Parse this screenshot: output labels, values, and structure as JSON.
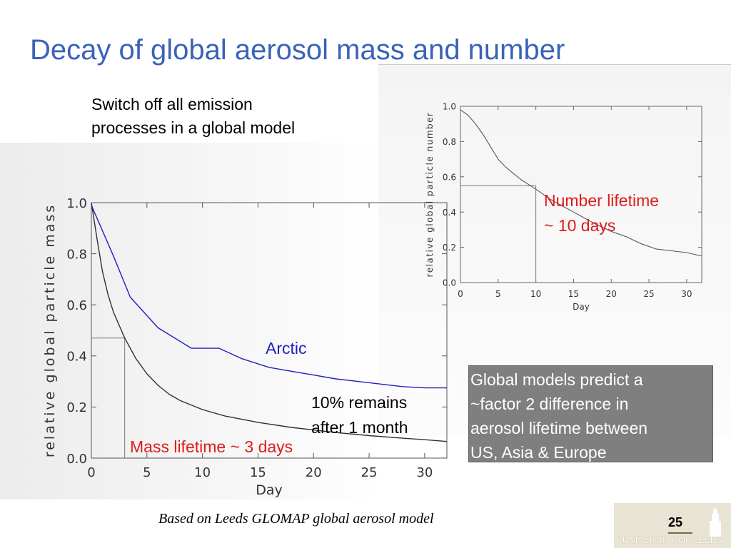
{
  "slide": {
    "title": "Decay of global aerosol mass and number",
    "intro_lines": [
      "Switch off all emission",
      "processes in a global model"
    ],
    "box_lines": [
      "Global models predict a",
      "~factor 2 difference in",
      "aerosol lifetime between",
      "US, Asia & Europe"
    ],
    "footer": "Based on Leeds GLOMAP global aerosol model",
    "page_number": "25",
    "university": "UNIVERSITY OF LEEDS",
    "colors": {
      "title": "#3a62b8",
      "arctic": "#1f1fbf",
      "annotation": "#e01b1b",
      "box": "#7f7f7f"
    }
  },
  "chart_data": [
    {
      "type": "line",
      "xlabel": "Day",
      "ylabel": "relative global particle mass",
      "xlim": [
        0,
        32
      ],
      "ylim": [
        0,
        1.0
      ],
      "xticks": [
        0,
        5,
        10,
        15,
        20,
        25,
        30
      ],
      "yticks": [
        0.0,
        0.2,
        0.4,
        0.6,
        0.8,
        1.0
      ],
      "ytick_labels": [
        "0.0",
        "0.2",
        "0.4",
        "0.6",
        "0.8",
        "1.0"
      ],
      "series": [
        {
          "name": "",
          "color": "#303030",
          "x": [
            0,
            0.5,
            1,
            1.5,
            2,
            3,
            4,
            5,
            6,
            7,
            8,
            10,
            12,
            15,
            18,
            20,
            22,
            25,
            28,
            30,
            32
          ],
          "y": [
            1.0,
            0.86,
            0.73,
            0.64,
            0.57,
            0.47,
            0.39,
            0.33,
            0.285,
            0.25,
            0.225,
            0.19,
            0.165,
            0.14,
            0.12,
            0.11,
            0.1,
            0.088,
            0.078,
            0.072,
            0.065
          ]
        },
        {
          "name": "Arctic",
          "color": "#1f1fbf",
          "x": [
            0,
            2,
            3.5,
            6,
            9,
            11.5,
            13.5,
            16,
            18,
            20,
            22,
            24,
            26,
            28,
            30,
            32
          ],
          "y": [
            0.99,
            0.79,
            0.63,
            0.51,
            0.43,
            0.43,
            0.39,
            0.355,
            0.34,
            0.325,
            0.31,
            0.3,
            0.29,
            0.28,
            0.275,
            0.275
          ]
        }
      ],
      "reference": {
        "x": 3,
        "y": 0.47
      },
      "annotations": [
        {
          "text": "Arctic",
          "color": "#1f1fbf"
        },
        {
          "text": "10% remains",
          "color": "#000000"
        },
        {
          "text": "after 1 month",
          "color": "#000000"
        },
        {
          "text": "Mass lifetime ~ 3 days",
          "color": "#e01b1b"
        }
      ]
    },
    {
      "type": "line",
      "xlabel": "Day",
      "ylabel": "relative global particle number",
      "xlim": [
        0,
        32
      ],
      "ylim": [
        0,
        1.0
      ],
      "xticks": [
        0,
        5,
        10,
        15,
        20,
        25,
        30
      ],
      "yticks": [
        0.0,
        0.2,
        0.4,
        0.6,
        0.8,
        1.0
      ],
      "ytick_labels": [
        "0.0",
        "0.2",
        "0.4",
        "0.6",
        "0.8",
        "1.0"
      ],
      "series": [
        {
          "name": "",
          "color": "#555555",
          "x": [
            0,
            1,
            2,
            3,
            4,
            5,
            6,
            7,
            8,
            10,
            12,
            15,
            18,
            20,
            22,
            24,
            26,
            28,
            30,
            32
          ],
          "y": [
            0.98,
            0.95,
            0.9,
            0.84,
            0.77,
            0.7,
            0.655,
            0.62,
            0.585,
            0.53,
            0.47,
            0.4,
            0.33,
            0.29,
            0.26,
            0.22,
            0.19,
            0.18,
            0.17,
            0.15
          ]
        }
      ],
      "reference": {
        "x": 10,
        "y": 0.55
      },
      "annotations": [
        {
          "text": "Number lifetime",
          "color": "#e01b1b"
        },
        {
          "text": "~ 10 days",
          "color": "#e01b1b"
        }
      ]
    }
  ]
}
